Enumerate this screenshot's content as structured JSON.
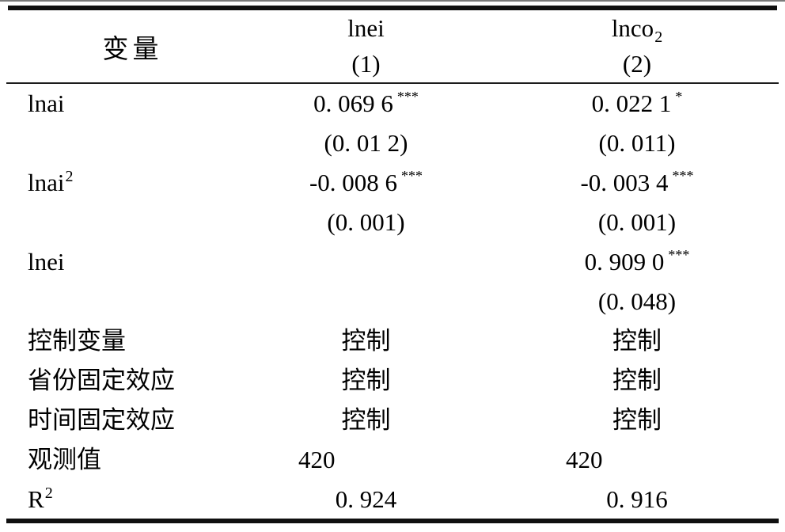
{
  "table": {
    "header": {
      "variable_label": "变量",
      "col1": {
        "name": "lnei",
        "model": "(1)"
      },
      "col2": {
        "name_base": "lnco",
        "name_sub": "2",
        "model": "(2)"
      }
    },
    "rows": [
      {
        "label": "lnai",
        "v1": "0. 069 6",
        "v1_stars": "***",
        "v2": "0. 022 1",
        "v2_stars": "*"
      },
      {
        "v1": "(0. 01 2)",
        "v2": "(0. 011)"
      },
      {
        "label": "lnai",
        "label_sup": "2",
        "v1": "-0. 008 6",
        "v1_stars": "***",
        "v2": "-0. 003 4",
        "v2_stars": "***"
      },
      {
        "v1": "(0. 001)",
        "v2": "(0. 001)"
      },
      {
        "label": "lnei",
        "v2": "0. 909 0",
        "v2_stars": "***"
      },
      {
        "v2": "(0. 048)"
      },
      {
        "label": "控制变量",
        "v1": "控制",
        "v2": "控制"
      },
      {
        "label": "省份固定效应",
        "v1": "控制",
        "v2": "控制"
      },
      {
        "label": "时间固定效应",
        "v1": "控制",
        "v2": "控制"
      },
      {
        "label": "观测值",
        "v1": "420",
        "v2": "420"
      },
      {
        "label": "R",
        "label_sup": "2",
        "v1": "0. 924",
        "v2": "0. 916"
      }
    ],
    "colors": {
      "text": "#000000",
      "rule": "#101010",
      "background": "#ffffff"
    }
  }
}
